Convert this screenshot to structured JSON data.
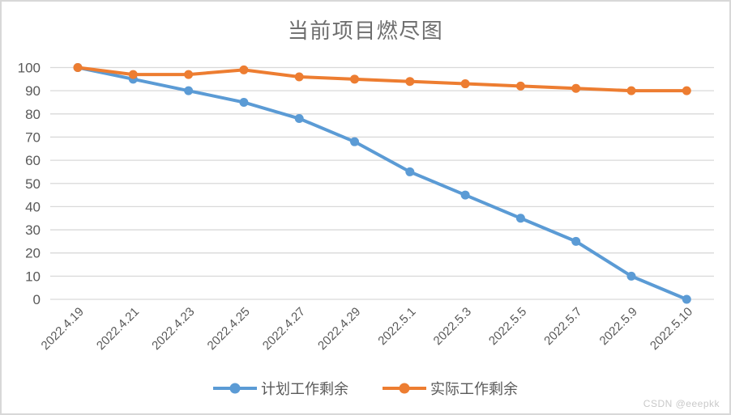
{
  "chart_data": {
    "type": "line",
    "title": "当前项目燃尽图",
    "categories": [
      "2022.4.19",
      "2022.4.21",
      "2022.4.23",
      "2022.4.25",
      "2022.4.27",
      "2022.4.29",
      "2022.5.1",
      "2022.5.3",
      "2022.5.5",
      "2022.5.7",
      "2022.5.9",
      "2022.5.10"
    ],
    "series": [
      {
        "name": "计划工作剩余",
        "key": "planned",
        "color": "#5b9bd5",
        "values": [
          100,
          95,
          90,
          85,
          78,
          68,
          55,
          45,
          35,
          25,
          10,
          0
        ]
      },
      {
        "name": "实际工作剩余",
        "key": "actual",
        "color": "#ed7d31",
        "values": [
          100,
          97,
          97,
          99,
          96,
          95,
          94,
          93,
          92,
          91,
          90,
          90
        ]
      }
    ],
    "xlabel": "",
    "ylabel": "",
    "ylim": [
      0,
      100
    ],
    "ytick_step": 10,
    "grid": "horizontal",
    "legend_position": "bottom"
  },
  "colors": {
    "grid": "#d9d9d9",
    "axis_text": "#595959",
    "title_text": "#6e6e6e",
    "legend_text": "#595959",
    "frame_border": "#d8d8d8",
    "watermark_text": "#c9c9c9"
  },
  "watermark": "CSDN @eeepkk"
}
